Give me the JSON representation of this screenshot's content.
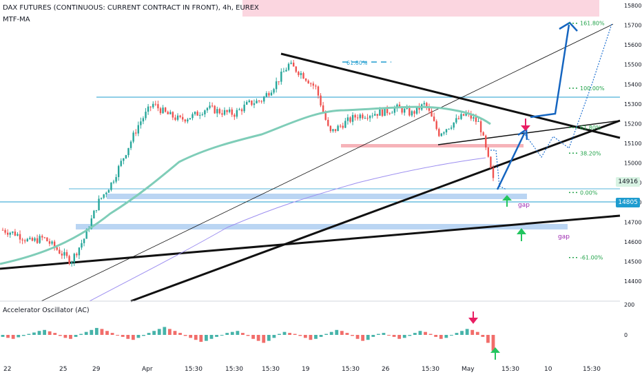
{
  "header": {
    "title": "DAX FUTURES (CONTINUOUS: CURRENT CONTRACT IN FRONT), 4h, EUREX",
    "indicator": "MTF-MA",
    "oscillator": "Accelerator Oscillator (AC)"
  },
  "price_tags": {
    "current": "14916",
    "blue": "14805"
  },
  "chart_data": [
    {
      "type": "candlestick",
      "title": "DAX FUTURES (CONTINUOUS: CURRENT CONTRACT IN FRONT), 4h, EUREX",
      "y_ticks": [
        14400,
        14500,
        14600,
        14700,
        14800,
        14900,
        15000,
        15100,
        15200,
        15300,
        15400,
        15500,
        15600,
        15700,
        15800
      ],
      "x_ticks": [
        "22",
        "25",
        "29",
        "Apr",
        "15:30",
        "15:30",
        "15:30",
        "19",
        "15:30",
        "26",
        "15:30",
        "May",
        "15:30",
        "10",
        "15:30"
      ],
      "x_label_positions_note": "",
      "close_path": [
        14660,
        14640,
        14600,
        14620,
        14560,
        14500,
        14620,
        14800,
        14900,
        15050,
        15200,
        15300,
        15250,
        15220,
        15240,
        15280,
        15260,
        15250,
        15300,
        15320,
        15400,
        15500,
        15450,
        15380,
        15150,
        15200,
        15240,
        15250,
        15260,
        15280,
        15250,
        15300,
        15150,
        15200,
        15250,
        15200,
        14910
      ],
      "fib_levels": [
        {
          "label": "161.80%",
          "value": 15710
        },
        {
          "label": "100.00%",
          "value": 15380
        },
        {
          "label": "61.80%",
          "value": 15180
        },
        {
          "label": "38.20%",
          "value": 15050
        },
        {
          "label": "0.00%",
          "value": 14850
        },
        {
          "label": "-61.00%",
          "value": 14520
        }
      ],
      "annotations": [
        "61.80%",
        "gap",
        "gap"
      ],
      "labels": {
        "fib_top": "61.80%",
        "gap1": "gap",
        "gap2": "gap"
      }
    },
    {
      "type": "bar",
      "title": "Accelerator Oscillator (AC)",
      "y_ticks": [
        200,
        0
      ],
      "values": [
        -10,
        -15,
        -20,
        -12,
        -5,
        5,
        12,
        20,
        25,
        18,
        10,
        -5,
        -15,
        -20,
        -10,
        5,
        15,
        25,
        35,
        30,
        20,
        10,
        0,
        -10,
        -20,
        -25,
        -15,
        -5,
        10,
        20,
        30,
        40,
        30,
        20,
        10,
        -5,
        -15,
        -25,
        -35,
        -30,
        -20,
        -10,
        0,
        10,
        15,
        20,
        10,
        -5,
        -20,
        -30,
        -40,
        -30,
        -15,
        5,
        15,
        10,
        5,
        -5,
        -15,
        -25,
        -20,
        -10,
        5,
        15,
        25,
        20,
        10,
        -5,
        -20,
        -30,
        -25,
        -10,
        5,
        10,
        0,
        -10,
        -20,
        -15,
        -5,
        10,
        20,
        15,
        5,
        -10,
        -20,
        -15,
        0,
        10,
        20,
        30,
        25,
        15,
        -10,
        -40,
        -80
      ]
    }
  ]
}
